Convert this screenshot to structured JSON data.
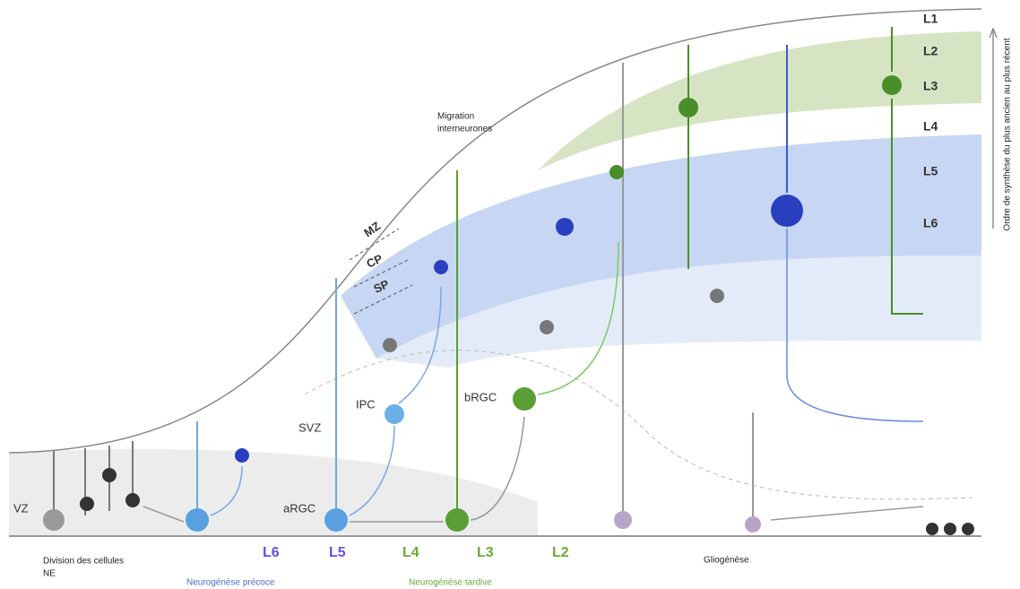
{
  "axis_note": "Ordre de synthèse du plus ancien au plus récent",
  "layers": [
    "L1",
    "L2",
    "L3",
    "L4",
    "L5",
    "L6"
  ],
  "labels": {
    "migration": [
      "Migration",
      "interneurones"
    ],
    "mz": "MZ",
    "cp": "CP",
    "sp": "SP",
    "ipc": "IPC",
    "brgc": "bRGC",
    "svz": "SVZ",
    "vz": "VZ",
    "argc": "aRGC",
    "division": [
      "Division des cellules",
      "NE"
    ]
  },
  "sequence": [
    "L6",
    "L5",
    "L4",
    "L3",
    "L2"
  ],
  "phases": {
    "early": "Neurogénèse précoce",
    "late": "Neurogénèse tardive",
    "glio": "Gliogénèse"
  }
}
